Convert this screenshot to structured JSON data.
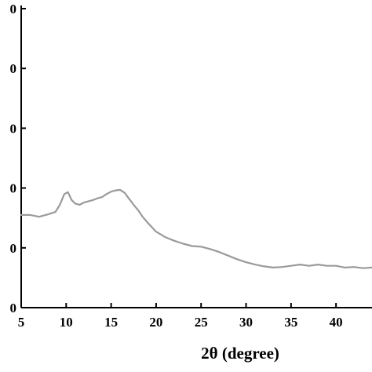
{
  "chart_data": {
    "type": "line",
    "title": "",
    "xlabel": "2θ (degree)",
    "ylabel": "",
    "xlim": [
      5,
      44
    ],
    "ylim": [
      0,
      500
    ],
    "grid": false,
    "x_ticks": [
      5,
      10,
      15,
      20,
      25,
      30,
      35,
      40
    ],
    "x_tick_labels": [
      "5",
      "10",
      "15",
      "20",
      "25",
      "30",
      "35",
      "40"
    ],
    "y_ticks": [
      0,
      100,
      200,
      300,
      400,
      500
    ],
    "y_tick_labels": [
      "0",
      "0",
      "0",
      "0",
      "0",
      "0"
    ],
    "series": [
      {
        "color": "#9a9a9a",
        "x": [
          5,
          6,
          7,
          8,
          8.8,
          9.3,
          9.8,
          10.2,
          10.6,
          11,
          11.5,
          12,
          12.5,
          13,
          13.5,
          14,
          14.5,
          15,
          15.5,
          16,
          16.5,
          17,
          17.5,
          18,
          18.5,
          19,
          19.5,
          20,
          21,
          22,
          23,
          24,
          25,
          26,
          27,
          28,
          29,
          30,
          31,
          32,
          33,
          34,
          35,
          36,
          37,
          38,
          39,
          40,
          41,
          42,
          43,
          44
        ],
        "y": [
          155,
          155,
          152,
          156,
          160,
          172,
          190,
          193,
          180,
          174,
          172,
          176,
          178,
          180,
          183,
          185,
          190,
          194,
          196,
          197,
          192,
          182,
          172,
          163,
          152,
          143,
          135,
          127,
          118,
          112,
          107,
          103,
          102,
          98,
          93,
          87,
          81,
          76,
          72,
          69,
          67,
          68,
          70,
          72,
          70,
          72,
          70,
          70,
          67,
          68,
          66,
          67
        ]
      }
    ]
  }
}
